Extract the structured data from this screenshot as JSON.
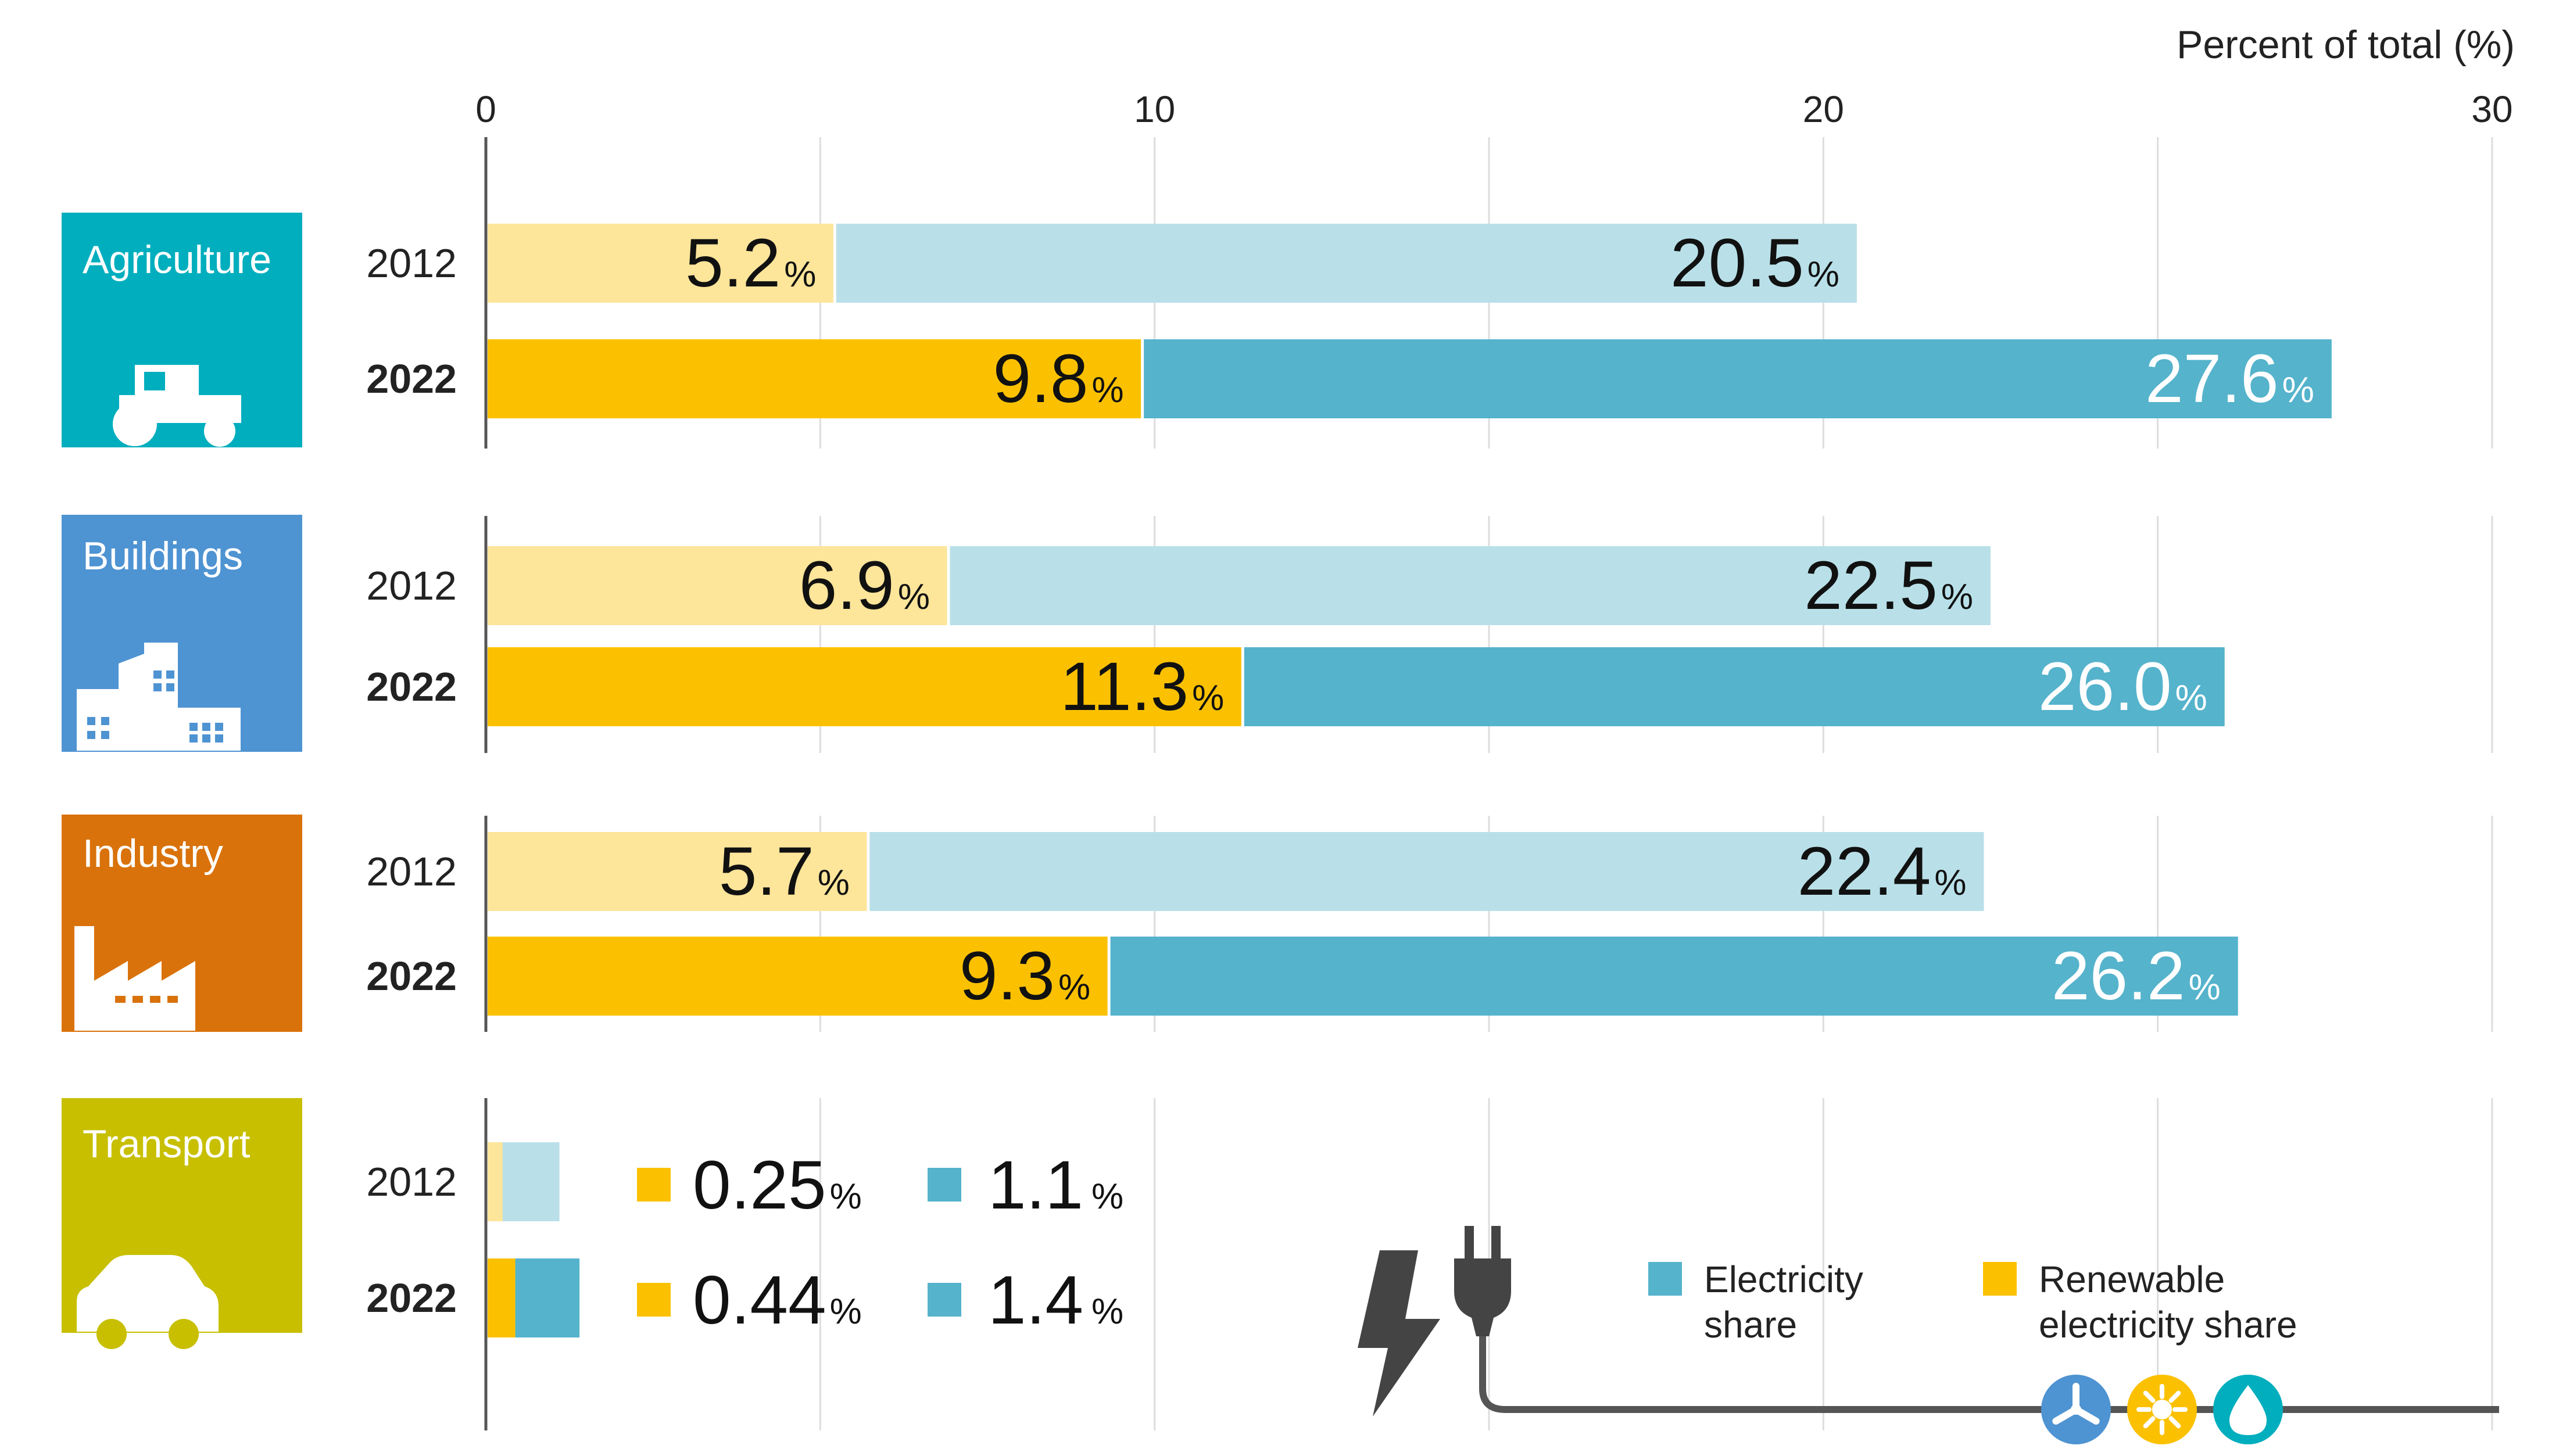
{
  "chart_data": {
    "type": "bar",
    "stacking": "overlay",
    "xlabel": "Percent of total (%)",
    "xlim": [
      0,
      30
    ],
    "xticks": [
      0,
      10,
      20,
      30
    ],
    "grid": true,
    "colors": {
      "renewable_2012": "#FDE59A",
      "renewable_2022": "#FBC100",
      "electricity_2012": "#B9E0E8",
      "electricity_2022": "#55B3CC",
      "axis": "#555555",
      "grid": "#DDDDDD"
    },
    "sectors": [
      {
        "name": "Agriculture",
        "color": "#00AEBE",
        "icon": "tractor-icon",
        "years": [
          {
            "year": "2012",
            "renewable": 5.2,
            "electricity": 20.5,
            "renewable_label": "5.2",
            "electricity_label": "20.5"
          },
          {
            "year": "2022",
            "renewable": 9.8,
            "electricity": 27.6,
            "renewable_label": "9.8",
            "electricity_label": "27.6"
          }
        ]
      },
      {
        "name": "Buildings",
        "color": "#4E93D2",
        "icon": "buildings-icon",
        "years": [
          {
            "year": "2012",
            "renewable": 6.9,
            "electricity": 22.5,
            "renewable_label": "6.9",
            "electricity_label": "22.5"
          },
          {
            "year": "2022",
            "renewable": 11.3,
            "electricity": 26.0,
            "renewable_label": "11.3",
            "electricity_label": "26.0"
          }
        ]
      },
      {
        "name": "Industry",
        "color": "#D9720B",
        "icon": "factory-icon",
        "years": [
          {
            "year": "2012",
            "renewable": 5.7,
            "electricity": 22.4,
            "renewable_label": "5.7",
            "electricity_label": "22.4"
          },
          {
            "year": "2022",
            "renewable": 9.3,
            "electricity": 26.2,
            "renewable_label": "9.3",
            "electricity_label": "26.2"
          }
        ]
      },
      {
        "name": "Transport",
        "color": "#C7BF00",
        "icon": "car-icon",
        "years": [
          {
            "year": "2012",
            "renewable": 0.25,
            "electricity": 1.1,
            "renewable_label": "0.25",
            "electricity_label": "1.1"
          },
          {
            "year": "2022",
            "renewable": 0.44,
            "electricity": 1.4,
            "renewable_label": "0.44",
            "electricity_label": "1.4"
          }
        ]
      }
    ],
    "percent_symbol": "%",
    "legend": {
      "placement": "bottom-right",
      "items": [
        {
          "name": "Electricity share",
          "line1": "Electricity",
          "line2": "share",
          "color": "#55B3CC"
        },
        {
          "name": "Renewable electricity share",
          "line1": "Renewable",
          "line2": "electricity share",
          "color": "#FBC100"
        }
      ],
      "icons": [
        "lightning-icon",
        "plug-icon",
        "wind-turbine-icon",
        "sun-icon",
        "water-drop-icon"
      ]
    }
  }
}
